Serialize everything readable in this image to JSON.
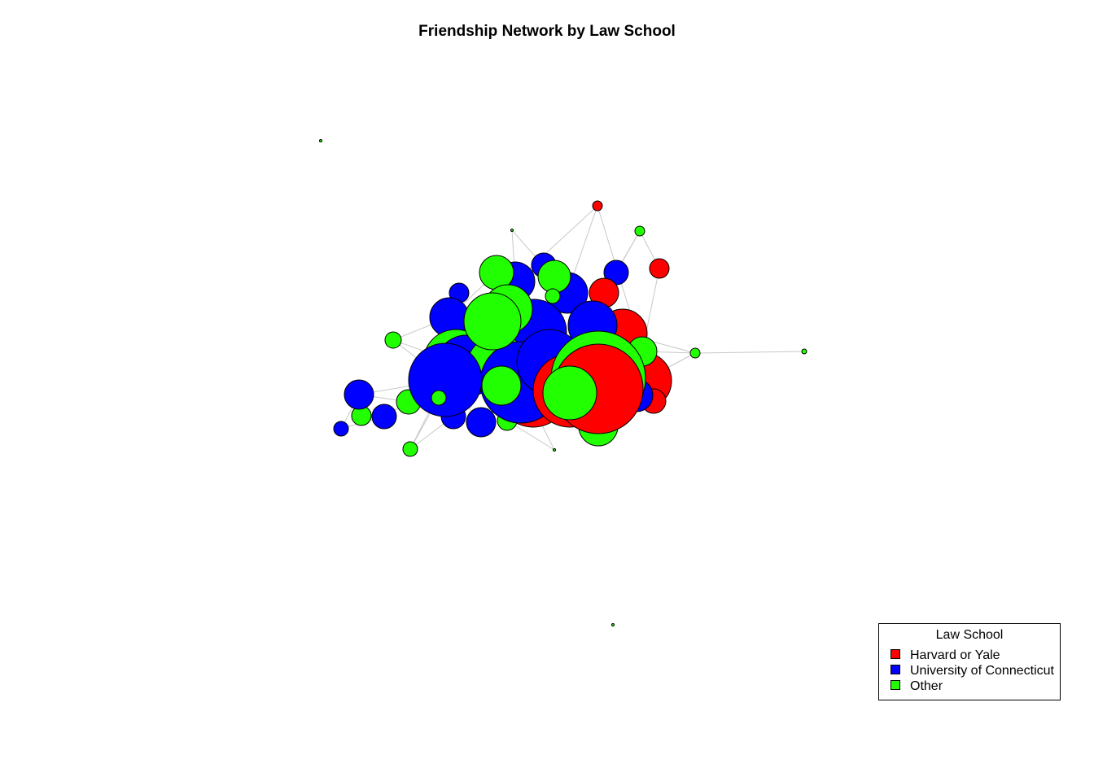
{
  "title": "Friendship Network by Law School",
  "legend": {
    "title": "Law School",
    "placement": "bottom-right",
    "entries": [
      {
        "label": "Harvard or Yale",
        "color": "#ff0000"
      },
      {
        "label": "University of Connecticut",
        "color": "#0000ff"
      },
      {
        "label": "Other",
        "color": "#22ff00"
      }
    ]
  },
  "colors": {
    "edge": "#c8c8c8",
    "node_border": "#000000",
    "background": "#ffffff"
  }
}
